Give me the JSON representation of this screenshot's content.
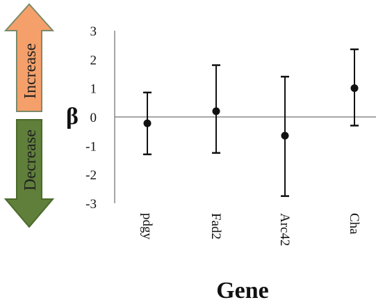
{
  "chart_data": {
    "type": "scatter",
    "categories": [
      "pdgy",
      "Fad2",
      "Arc42",
      "Cha"
    ],
    "series": [
      {
        "values": [
          -0.22,
          0.2,
          -0.65,
          1.0
        ],
        "error_low": [
          -1.3,
          -1.25,
          -2.75,
          -0.3
        ],
        "error_high": [
          0.85,
          1.8,
          1.4,
          2.35
        ]
      }
    ],
    "xlabel": "Gene",
    "ylabel": "β",
    "ylim": [
      -3,
      3
    ],
    "yticks": [
      3,
      2,
      1,
      0,
      -1,
      -2,
      -3
    ],
    "grid": false
  },
  "arrows": {
    "increase": {
      "label": "Increase",
      "color": "#f5a06a"
    },
    "decrease": {
      "label": "Decrease",
      "color": "#5f7f3a"
    }
  }
}
